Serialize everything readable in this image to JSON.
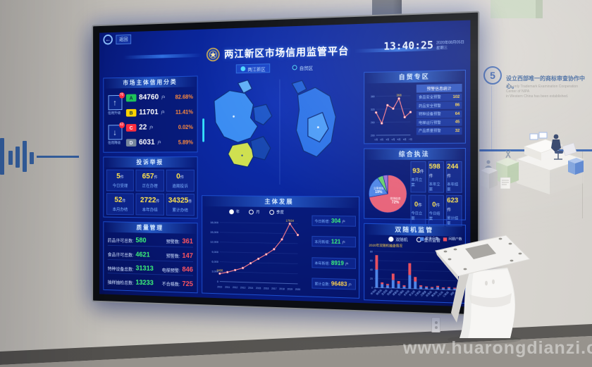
{
  "colors": {
    "accent_blue": "#2f6fe0",
    "screen_glow": "#0d2fb4",
    "grade_a": "#1ec45a",
    "grade_b": "#ffd400",
    "grade_c": "#ff2e3e",
    "grade_d": "#77879c",
    "value_yellow": "#ffe34d",
    "value_green": "#3df57a",
    "warn_red": "#ff5560",
    "pct_orange": "#ff8a3c",
    "wall_line_blue": "#35609f"
  },
  "wall": {
    "step_number": "5",
    "step_zh": "设立西部唯一的商标审查协作中心。",
    "step_en_1": "The only Trademark Examination Cooperation Center of NIPA",
    "step_en_2": "in Western China has been established.",
    "watermark": "www.huarongdianzi.com"
  },
  "screen": {
    "back_label": "返回",
    "back_arrow": "←",
    "title": "两江新区市场信用监管平台",
    "clock": {
      "time": "13:40:25",
      "date": "2020年08月05日",
      "weekday": "星期三"
    },
    "map_tabs": [
      {
        "label": "两江新区"
      },
      {
        "label": "自贸区"
      }
    ],
    "credit": {
      "title": "市场主体信用分类",
      "buttons": [
        {
          "arrow": "↑",
          "badge": "76",
          "label": "信用升级"
        },
        {
          "arrow": "↓",
          "badge": "63",
          "label": "信用降级"
        }
      ],
      "rows": [
        {
          "grade": "A",
          "value": "84760",
          "unit": "户",
          "pct": "82.68%"
        },
        {
          "grade": "B",
          "value": "11701",
          "unit": "户",
          "pct": "11.41%"
        },
        {
          "grade": "C",
          "value": "22",
          "unit": "户",
          "pct": "0.02%"
        },
        {
          "grade": "D",
          "value": "6031",
          "unit": "户",
          "pct": "5.89%"
        }
      ]
    },
    "complaint": {
      "title": "投诉举报",
      "cells": [
        {
          "value": "5",
          "unit": "件",
          "label": "今日受理"
        },
        {
          "value": "657",
          "unit": "件",
          "label": "正在办理"
        },
        {
          "value": "0",
          "unit": "件",
          "label": "逾期投诉"
        },
        {
          "value": "52",
          "unit": "件",
          "label": "本月办结"
        },
        {
          "value": "2722",
          "unit": "件",
          "label": "本年办结"
        },
        {
          "value": "34325",
          "unit": "件",
          "label": "累计办结"
        }
      ]
    },
    "quality": {
      "title": "质量管理",
      "rows": [
        {
          "label": "药品许可总数:",
          "value": "580",
          "warn_label": "预警数:",
          "warn_value": "361"
        },
        {
          "label": "食品许可总数:",
          "value": "4621",
          "warn_label": "预警数:",
          "warn_value": "147"
        },
        {
          "label": "特种设备总数:",
          "value": "31313",
          "warn_label": "电梯预警:",
          "warn_value": "846"
        },
        {
          "label": "抽样抽检总数:",
          "value": "13233",
          "warn_label": "不合格数:",
          "warn_value": "725"
        }
      ]
    },
    "development": {
      "title": "主体发展",
      "legend": [
        "年",
        "月",
        "季度"
      ],
      "stats": [
        {
          "label": "今日新增:",
          "value": "304",
          "unit": "户",
          "tone": "green"
        },
        {
          "label": "本月新增:",
          "value": "121",
          "unit": "户",
          "tone": "green"
        },
        {
          "label": "本年新增:",
          "value": "8919",
          "unit": "户",
          "tone": "green"
        },
        {
          "label": "累计总数:",
          "value": "96483",
          "unit": "户",
          "tone": "yellow"
        }
      ]
    },
    "ftz": {
      "title": "自贸专区",
      "list_header": "预警信息统计",
      "list": [
        {
          "label": "食品安全预警",
          "value": "102"
        },
        {
          "label": "药品安全预警",
          "value": "86"
        },
        {
          "label": "特种设备预警",
          "value": "64"
        },
        {
          "label": "电梯运行预警",
          "value": "45"
        },
        {
          "label": "产品质量预警",
          "value": "32"
        }
      ]
    },
    "enforcement": {
      "title": "综合执法",
      "cells": [
        {
          "value": "93",
          "unit": "件",
          "label": "本月立案"
        },
        {
          "value": "598",
          "unit": "件",
          "label": "本年立案"
        },
        {
          "value": "244",
          "unit": "件",
          "label": "本年结案"
        },
        {
          "value": "0",
          "unit": "件",
          "label": "今日立案"
        },
        {
          "value": "0",
          "unit": "件",
          "label": "今日结案"
        },
        {
          "value": "623",
          "unit": "件",
          "label": "累计结案"
        }
      ]
    },
    "random_check": {
      "title": "双随机监管",
      "radios": [
        "双随机",
        "重点监管"
      ],
      "note": "2020年双随机抽查情况",
      "legend": [
        {
          "label": "检查户数"
        },
        {
          "label": "问题户数"
        }
      ]
    }
  },
  "chart_data": [
    {
      "id": "development_trend",
      "type": "line",
      "title": "主体发展",
      "x": [
        "2010",
        "2011",
        "2012",
        "2013",
        "2014",
        "2015",
        "2016",
        "2017",
        "2018",
        "2019",
        "2020"
      ],
      "values": [
        2408,
        2900,
        3600,
        4300,
        5800,
        7200,
        8600,
        10200,
        13200,
        17934,
        14600
      ],
      "ylim": [
        0,
        18000
      ],
      "yticks": [
        0,
        3000,
        6000,
        9000,
        12000,
        15000,
        18000
      ],
      "point_labels": {
        "0": "2408",
        "9": "17934"
      },
      "line_color": "#ff7d8a",
      "grid": true,
      "legend_position": "top"
    },
    {
      "id": "ftz_trend",
      "type": "line",
      "x": [
        "1月",
        "2月",
        "3月",
        "4月",
        "5月",
        "6月",
        "7月"
      ],
      "values": [
        305,
        255,
        338,
        322,
        368,
        282,
        305
      ],
      "ylim": [
        200,
        400
      ],
      "yticks": [
        200,
        260,
        320,
        380
      ],
      "point_labels": {
        "4": "368"
      },
      "line_color": "#ff7d8a",
      "grid": true
    },
    {
      "id": "enforcement_pie",
      "type": "pie",
      "slices": [
        {
          "label": "现场检查",
          "value": 72,
          "color": "#e8637a"
        },
        {
          "label": "立案查处",
          "value": 19,
          "color": "#4f86e8"
        },
        {
          "label": "其他",
          "value": 5,
          "color": "#69d06e"
        },
        {
          "label": "抽查",
          "value": 4,
          "color": "#9a6fd8"
        }
      ]
    },
    {
      "id": "random_check_bars",
      "type": "bar",
      "stacked": true,
      "categories": [
        "市场局",
        "规资局",
        "生态局",
        "住建局",
        "城管局",
        "交通局",
        "水利局",
        "农业局",
        "文旅局",
        "卫健委",
        "应急局",
        "税务局",
        "人社局",
        "公安局",
        "消防"
      ],
      "series": [
        {
          "name": "检查户数",
          "color": "#4f86e8",
          "values": [
            40,
            8,
            6,
            18,
            10,
            4,
            30,
            16,
            5,
            4,
            3,
            5,
            3,
            4,
            3
          ]
        },
        {
          "name": "问题户数",
          "color": "#e85060",
          "values": [
            32,
            4,
            3,
            14,
            6,
            3,
            26,
            10,
            3,
            2,
            2,
            3,
            2,
            2,
            2
          ]
        }
      ],
      "ylim": [
        0,
        80
      ],
      "yticks": [
        0,
        20,
        40,
        60,
        80
      ]
    }
  ]
}
